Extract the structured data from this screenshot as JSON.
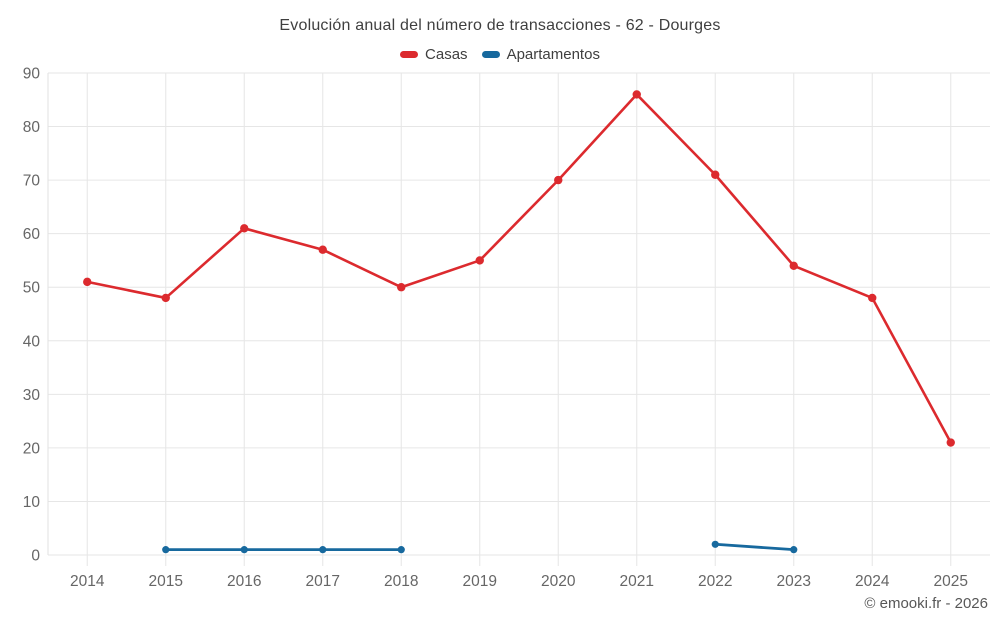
{
  "header": {
    "title": "Evolución anual del número de transacciones - 62 - Dourges"
  },
  "footer": {
    "attribution": "© emooki.fr - 2026"
  },
  "chart_data": {
    "type": "line",
    "title": "Evolución anual del número de transacciones - 62 - Dourges",
    "categories": [
      "2014",
      "2015",
      "2016",
      "2017",
      "2018",
      "2019",
      "2020",
      "2021",
      "2022",
      "2023",
      "2024",
      "2025"
    ],
    "series": [
      {
        "name": "Casas",
        "color": "#dc2a2e",
        "marker_radius": 4.2,
        "line_width": 2.6,
        "values": [
          51,
          48,
          61,
          57,
          50,
          55,
          70,
          86,
          71,
          54,
          48,
          21
        ]
      },
      {
        "name": "Apartamentos",
        "color": "#17699e",
        "marker_radius": 3.6,
        "line_width": 2.8,
        "values": [
          null,
          1,
          1,
          1,
          1,
          null,
          null,
          null,
          2,
          1,
          null,
          null
        ]
      }
    ],
    "xlabel": "",
    "ylabel": "",
    "ylim": [
      0,
      90
    ],
    "ytick_step": 10,
    "grid": true,
    "legend_position": "top",
    "grid_color": "#e6e6e6",
    "axis_line_color": "#e2e2e2",
    "tick_color": "#666666"
  }
}
